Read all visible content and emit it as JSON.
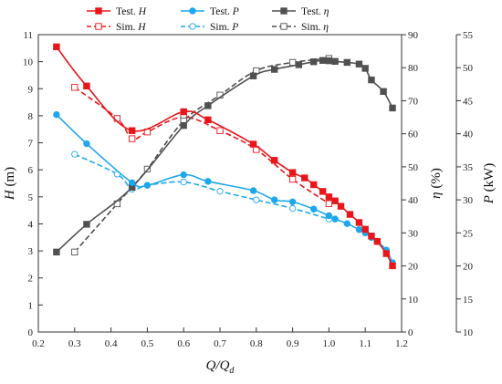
{
  "chart_data": {
    "type": "line",
    "x": {
      "label": "Q/Q",
      "label_sub": "d",
      "range": [
        0.2,
        1.2
      ],
      "ticks": [
        "0.2",
        "0.3",
        "0.4",
        "0.5",
        "0.6",
        "0.7",
        "0.8",
        "0.9",
        "1.0",
        "1.1",
        "1.2"
      ]
    },
    "y_left": {
      "label": "H",
      "unit": " (m)",
      "range": [
        0,
        11
      ],
      "ticks": [
        "0",
        "1",
        "2",
        "3",
        "4",
        "5",
        "6",
        "7",
        "8",
        "9",
        "10",
        "11"
      ]
    },
    "y_eta": {
      "label": "η",
      "unit": " (%)",
      "range": [
        0,
        90
      ],
      "ticks": [
        "0",
        "10",
        "20",
        "30",
        "40",
        "50",
        "60",
        "70",
        "80",
        "90"
      ]
    },
    "y_power": {
      "label": "P",
      "unit": " (kW)",
      "range": [
        10,
        55
      ],
      "ticks": [
        "10",
        "15",
        "20",
        "25",
        "30",
        "35",
        "40",
        "45",
        "50",
        "55"
      ]
    },
    "legend": [
      {
        "text": "Test. ",
        "var": "H",
        "series": "test_H"
      },
      {
        "text": "Test. ",
        "var": "P",
        "series": "test_P"
      },
      {
        "text": "Test. ",
        "var": "η",
        "series": "test_eta"
      },
      {
        "text": "Sim. ",
        "var": "H",
        "series": "sim_H"
      },
      {
        "text": "Sim. ",
        "var": "P",
        "series": "sim_P"
      },
      {
        "text": "Sim. ",
        "var": "η",
        "series": "sim_eta"
      }
    ],
    "series": [
      {
        "id": "test_H",
        "name": "Test. H",
        "axis": "left",
        "color": "#e8161b",
        "dash": false,
        "marker": "filled-square",
        "points": [
          [
            0.25,
            10.55
          ],
          [
            0.333,
            9.1
          ],
          [
            0.458,
            7.45
          ],
          [
            0.6,
            8.15
          ],
          [
            0.667,
            7.85
          ],
          [
            0.792,
            6.95
          ],
          [
            0.85,
            6.35
          ],
          [
            0.9,
            5.9
          ],
          [
            0.933,
            5.7
          ],
          [
            0.958,
            5.45
          ],
          [
            0.983,
            5.2
          ],
          [
            1.0,
            5.0
          ],
          [
            1.017,
            4.85
          ],
          [
            1.033,
            4.65
          ],
          [
            1.058,
            4.35
          ],
          [
            1.083,
            4.05
          ],
          [
            1.1,
            3.8
          ],
          [
            1.117,
            3.55
          ],
          [
            1.133,
            3.35
          ],
          [
            1.158,
            2.9
          ],
          [
            1.175,
            2.45
          ]
        ]
      },
      {
        "id": "sim_H",
        "name": "Sim. H",
        "axis": "left",
        "color": "#e8161b",
        "dash": true,
        "marker": "open-square",
        "points": [
          [
            0.3,
            9.05
          ],
          [
            0.417,
            7.9
          ],
          [
            0.458,
            7.15
          ],
          [
            0.5,
            7.4
          ],
          [
            0.6,
            7.95
          ],
          [
            0.7,
            7.45
          ],
          [
            0.8,
            6.75
          ],
          [
            0.9,
            5.65
          ],
          [
            1.0,
            4.75
          ]
        ]
      },
      {
        "id": "test_P",
        "name": "Test. P",
        "axis": "power",
        "color": "#1ea7ec",
        "dash": false,
        "marker": "filled-circle",
        "points": [
          [
            0.25,
            42.9
          ],
          [
            0.333,
            38.5
          ],
          [
            0.458,
            32.6
          ],
          [
            0.5,
            32.2
          ],
          [
            0.6,
            33.8
          ],
          [
            0.667,
            32.8
          ],
          [
            0.792,
            31.4
          ],
          [
            0.85,
            30.0
          ],
          [
            0.9,
            29.7
          ],
          [
            0.958,
            28.6
          ],
          [
            1.0,
            27.6
          ],
          [
            1.017,
            27.1
          ],
          [
            1.05,
            26.4
          ],
          [
            1.083,
            25.5
          ],
          [
            1.1,
            25.0
          ],
          [
            1.117,
            24.3
          ],
          [
            1.133,
            23.7
          ],
          [
            1.158,
            22.4
          ],
          [
            1.175,
            20.5
          ]
        ]
      },
      {
        "id": "sim_P",
        "name": "Sim. P",
        "axis": "power",
        "color": "#1ea7ec",
        "dash": true,
        "marker": "open-circle",
        "points": [
          [
            0.3,
            36.9
          ],
          [
            0.417,
            33.9
          ],
          [
            0.458,
            31.6
          ],
          [
            0.5,
            32.2
          ],
          [
            0.6,
            32.7
          ],
          [
            0.7,
            31.3
          ],
          [
            0.8,
            30.0
          ],
          [
            0.9,
            28.7
          ],
          [
            1.0,
            27.1
          ]
        ]
      },
      {
        "id": "test_eta",
        "name": "Test. η",
        "axis": "eta",
        "color": "#505050",
        "dash": false,
        "marker": "filled-square",
        "points": [
          [
            0.25,
            24.2
          ],
          [
            0.333,
            32.6
          ],
          [
            0.458,
            43.8
          ],
          [
            0.6,
            62.5
          ],
          [
            0.667,
            68.5
          ],
          [
            0.792,
            77.5
          ],
          [
            0.85,
            79.5
          ],
          [
            0.917,
            80.9
          ],
          [
            0.958,
            81.8
          ],
          [
            0.983,
            82.2
          ],
          [
            1.0,
            82.1
          ],
          [
            1.017,
            81.9
          ],
          [
            1.05,
            81.6
          ],
          [
            1.083,
            81.1
          ],
          [
            1.1,
            79.8
          ],
          [
            1.117,
            76.3
          ],
          [
            1.15,
            72.8
          ],
          [
            1.175,
            67.8
          ]
        ]
      },
      {
        "id": "sim_eta",
        "name": "Sim. η",
        "axis": "eta",
        "color": "#505050",
        "dash": true,
        "marker": "open-square",
        "points": [
          [
            0.3,
            24.2
          ],
          [
            0.417,
            38.8
          ],
          [
            0.458,
            43.9
          ],
          [
            0.5,
            49.3
          ],
          [
            0.6,
            63.9
          ],
          [
            0.7,
            71.7
          ],
          [
            0.8,
            79.1
          ],
          [
            0.9,
            81.6
          ],
          [
            1.0,
            82.8
          ]
        ]
      }
    ]
  }
}
